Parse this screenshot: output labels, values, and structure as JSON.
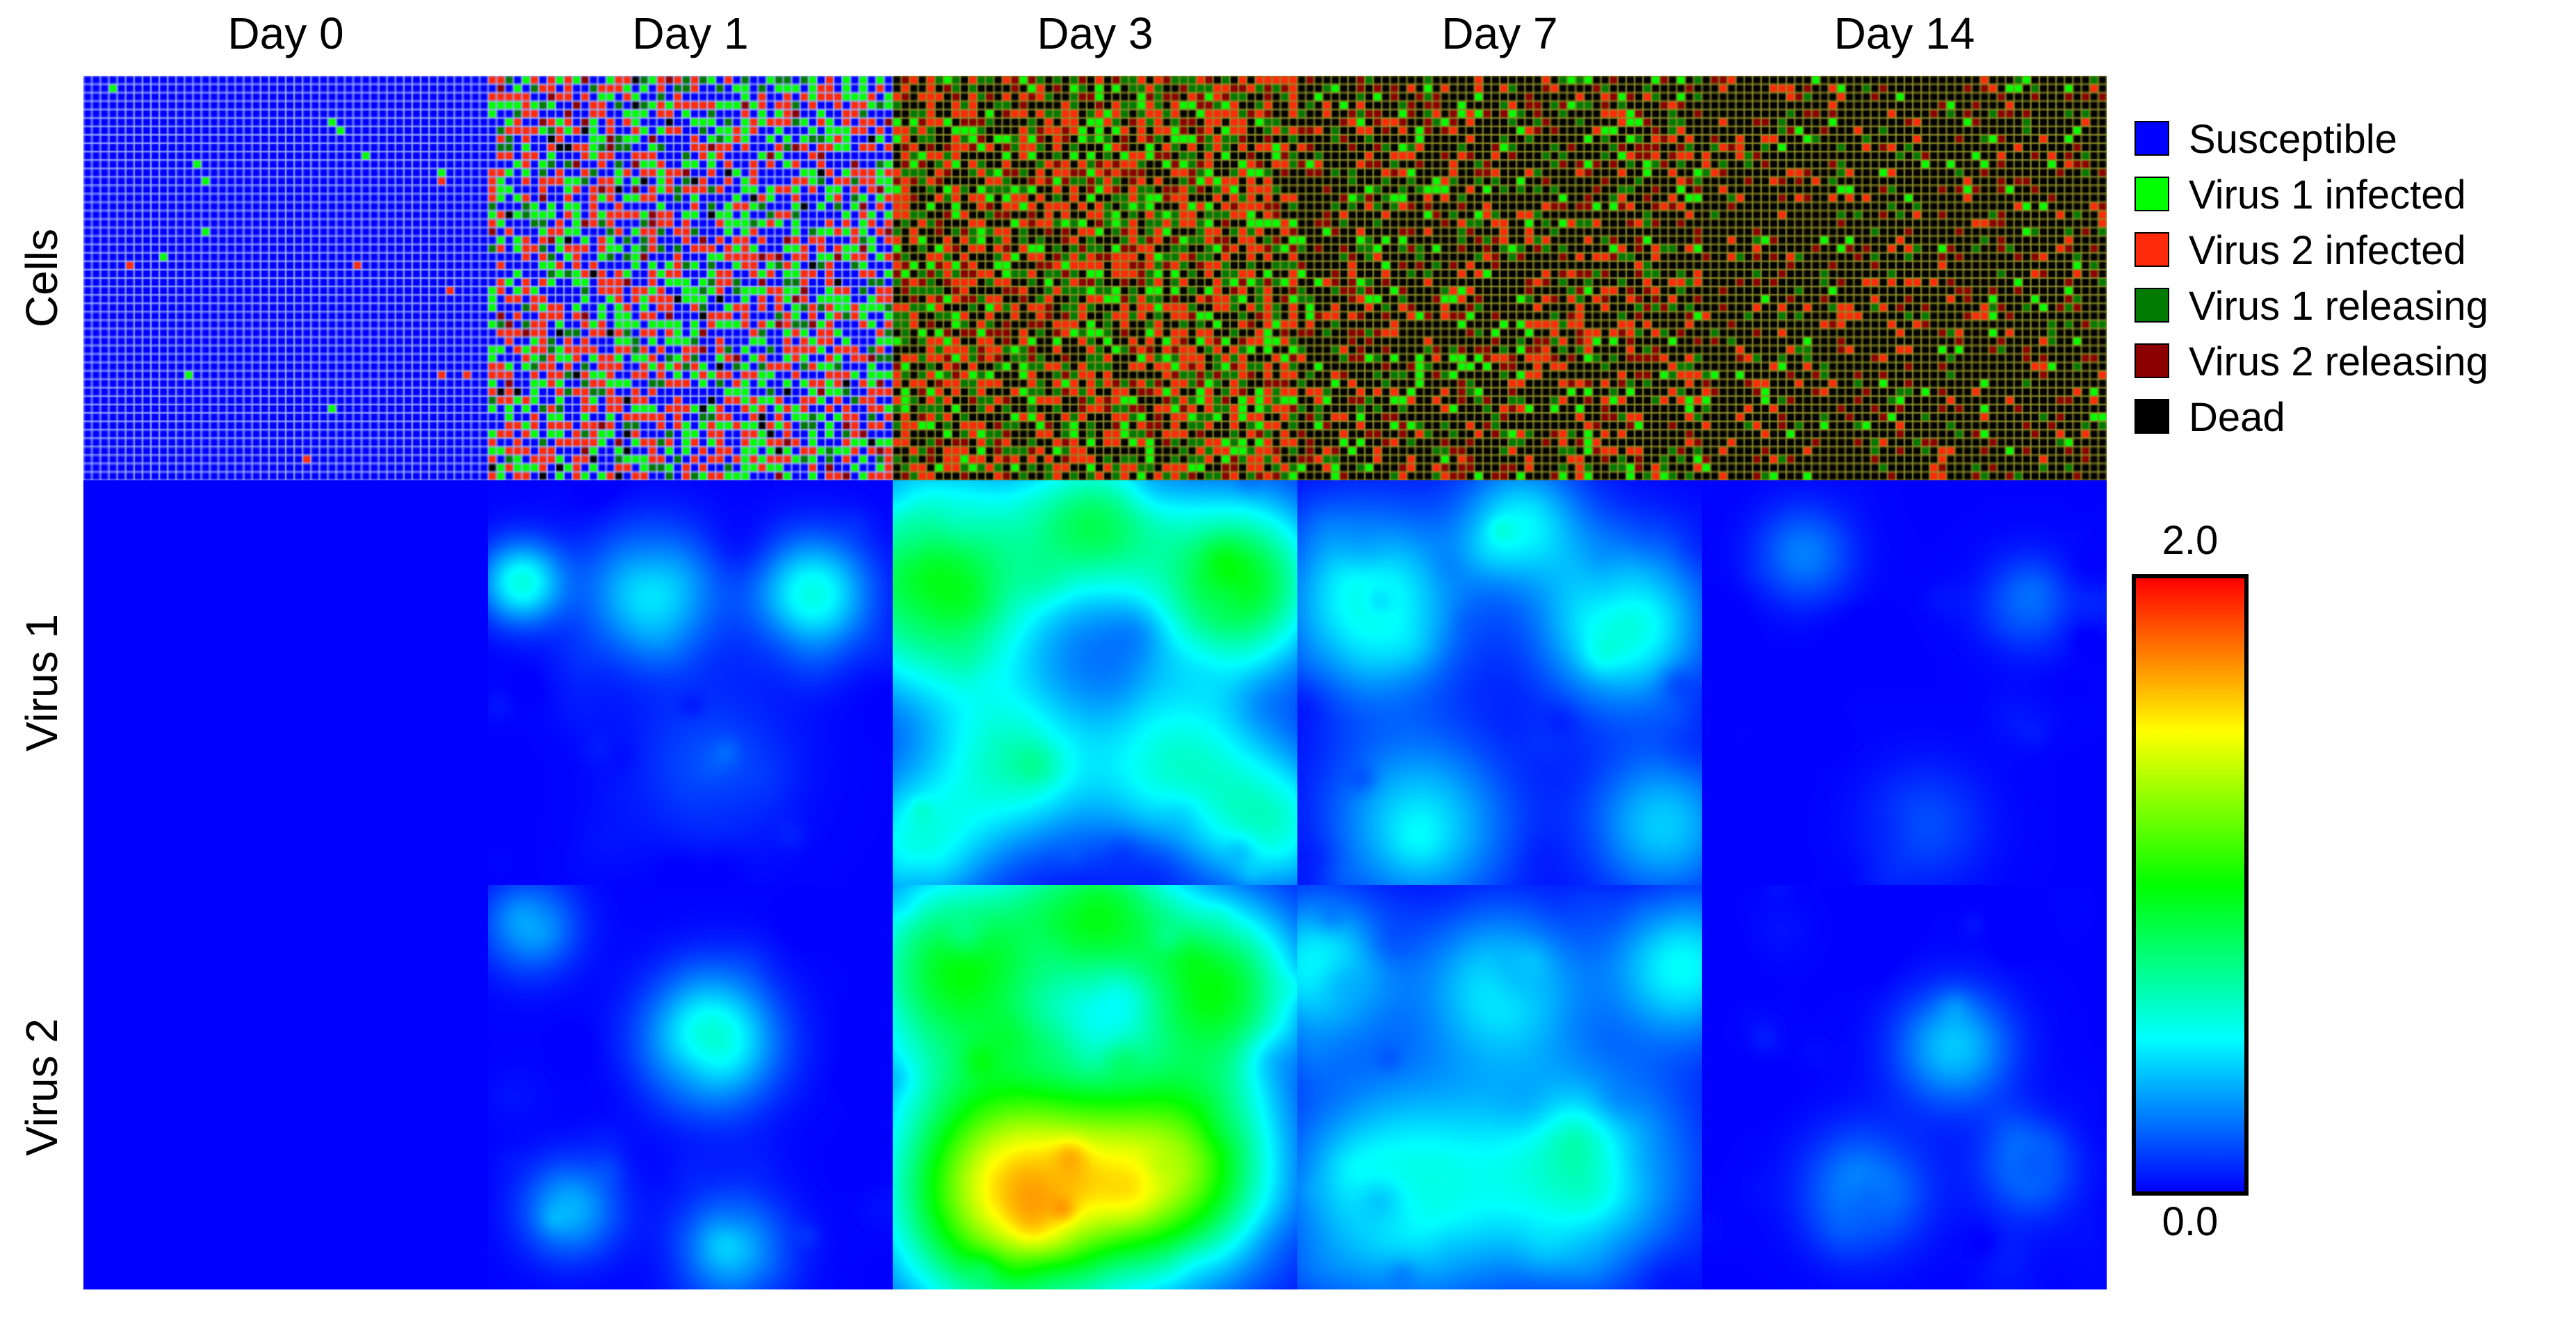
{
  "columns": [
    "Day 0",
    "Day 1",
    "Day 3",
    "Day 7",
    "Day 14"
  ],
  "rows": [
    "Cells",
    "Virus 1",
    "Virus 2"
  ],
  "legend": [
    {
      "label": "Susceptible",
      "color": "#0000ff"
    },
    {
      "label": "Virus 1 infected",
      "color": "#00ff00"
    },
    {
      "label": "Virus 2 infected",
      "color": "#ff2a0a"
    },
    {
      "label": "Virus 1 releasing",
      "color": "#007a00"
    },
    {
      "label": "Virus 2 releasing",
      "color": "#8b0000"
    },
    {
      "label": "Dead",
      "color": "#000000"
    }
  ],
  "colorbar": {
    "max_label": "2.0",
    "min_label": "0.0",
    "min": 0.0,
    "max": 2.0,
    "colors": [
      "#0000ff",
      "#00ffff",
      "#00ff00",
      "#ffff00",
      "#ff0000"
    ]
  },
  "cells_state_fractions": [
    {
      "susceptible": 0.985,
      "v1_infected": 0.012,
      "v2_infected": 0.003,
      "v1_releasing": 0,
      "v2_releasing": 0,
      "dead": 0
    },
    {
      "susceptible": 0.38,
      "v1_infected": 0.22,
      "v2_infected": 0.28,
      "v1_releasing": 0.07,
      "v2_releasing": 0.03,
      "dead": 0.02
    },
    {
      "susceptible": 0,
      "v1_infected": 0.1,
      "v2_infected": 0.28,
      "v1_releasing": 0.18,
      "v2_releasing": 0.12,
      "dead": 0.32
    },
    {
      "susceptible": 0,
      "v1_infected": 0.07,
      "v2_infected": 0.12,
      "v1_releasing": 0.1,
      "v2_releasing": 0.12,
      "dead": 0.59
    },
    {
      "susceptible": 0,
      "v1_infected": 0.03,
      "v2_infected": 0.06,
      "v1_releasing": 0.05,
      "v2_releasing": 0.08,
      "dead": 0.78
    }
  ]
}
